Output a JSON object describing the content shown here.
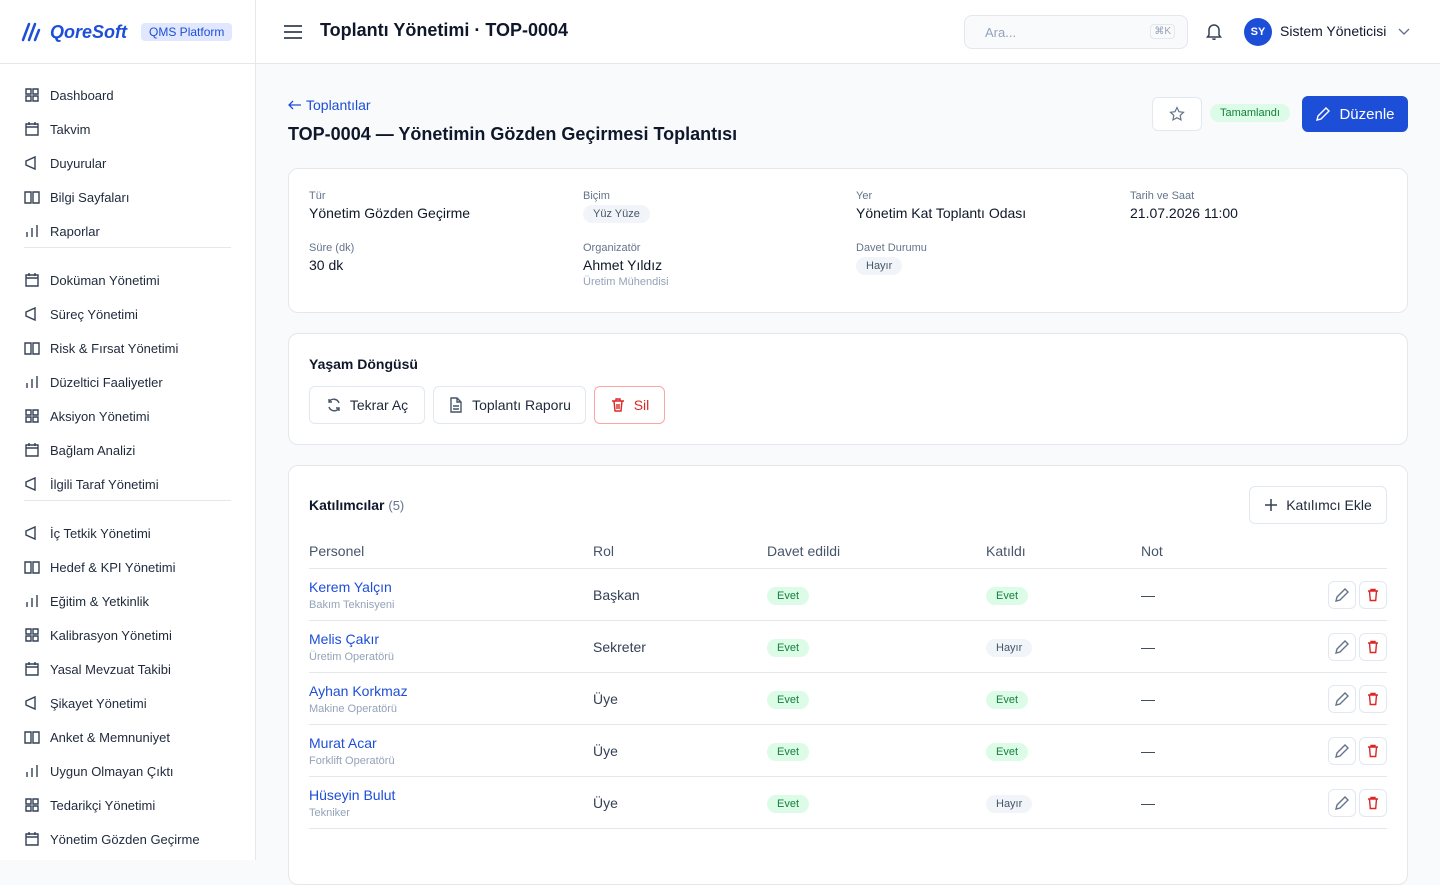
{
  "brand": {
    "name": "QoreSoft",
    "badge": "QMS Platform"
  },
  "header": {
    "title": "Toplantı Yönetimi · TOP-0004",
    "search": "Ara...",
    "shortcut": "⌘K",
    "initials": "SY",
    "user": "Sistem Yöneticisi"
  },
  "sidebar": {
    "groups": [
      [
        "Dashboard",
        "Takvim",
        "Duyurular",
        "Bilgi Sayfaları",
        "Raporlar"
      ],
      [
        "Doküman Yönetimi",
        "Süreç Yönetimi",
        "Risk & Fırsat Yönetimi",
        "Düzeltici Faaliyetler",
        "Aksiyon Yönetimi",
        "Bağlam Analizi",
        "İlgili Taraf Yönetimi"
      ],
      [
        "İç Tetkik Yönetimi",
        "Hedef & KPI Yönetimi",
        "Eğitim & Yetkinlik",
        "Kalibrasyon Yönetimi",
        "Yasal Mevzuat Takibi",
        "Şikayet Yönetimi",
        "Anket & Memnuniyet",
        "Uygun Olmayan Çıktı",
        "Tedarikçi Yönetimi",
        "Yönetim Gözden Geçirme"
      ]
    ]
  },
  "page": {
    "back": "Toplantılar",
    "title": "TOP-0004 — Yönetimin Gözden Geçirmesi Toplantısı",
    "status": "Tamamlandı",
    "edit": "Düzenle"
  },
  "details": [
    {
      "label": "Tür",
      "value": "Yönetim Gözden Geçirme"
    },
    {
      "label": "Biçim",
      "tag": "Yüz Yüze"
    },
    {
      "label": "Yer",
      "value": "Yönetim Kat Toplantı Odası"
    },
    {
      "label": "Tarih ve Saat",
      "value": "21.07.2026 11:00"
    },
    {
      "label": "Süre (dk)",
      "value": "30 dk"
    },
    {
      "label": "Organizatör",
      "value": "Ahmet Yıldız",
      "sub": "Üretim Mühendisi"
    },
    {
      "label": "Davet Durumu",
      "tag": "Hayır"
    }
  ],
  "lifecycle": {
    "title": "Yaşam Döngüsü",
    "actions": [
      "Tekrar Aç",
      "Toplantı Raporu",
      "Sil"
    ]
  },
  "participants": {
    "title": "Katılımcılar",
    "count": "(5)",
    "add": "Katılımcı Ekle",
    "columns": [
      "Personel",
      "Rol",
      "Davet edildi",
      "Katıldı",
      "Not"
    ],
    "rows": [
      {
        "name": "Kerem Yalçın",
        "job": "Bakım Teknisyeni",
        "role": "Başkan",
        "invited": "Evet",
        "attended": "Evet",
        "note": "—"
      },
      {
        "name": "Melis Çakır",
        "job": "Üretim Operatörü",
        "role": "Sekreter",
        "invited": "Evet",
        "attended": "Hayır",
        "note": "—"
      },
      {
        "name": "Ayhan Korkmaz",
        "job": "Makine Operatörü",
        "role": "Üye",
        "invited": "Evet",
        "attended": "Evet",
        "note": "—"
      },
      {
        "name": "Murat Acar",
        "job": "Forklift Operatörü",
        "role": "Üye",
        "invited": "Evet",
        "attended": "Evet",
        "note": "—"
      },
      {
        "name": "Hüseyin Bulut",
        "job": "Tekniker",
        "role": "Üye",
        "invited": "Evet",
        "attended": "Hayır",
        "note": "—"
      }
    ]
  }
}
